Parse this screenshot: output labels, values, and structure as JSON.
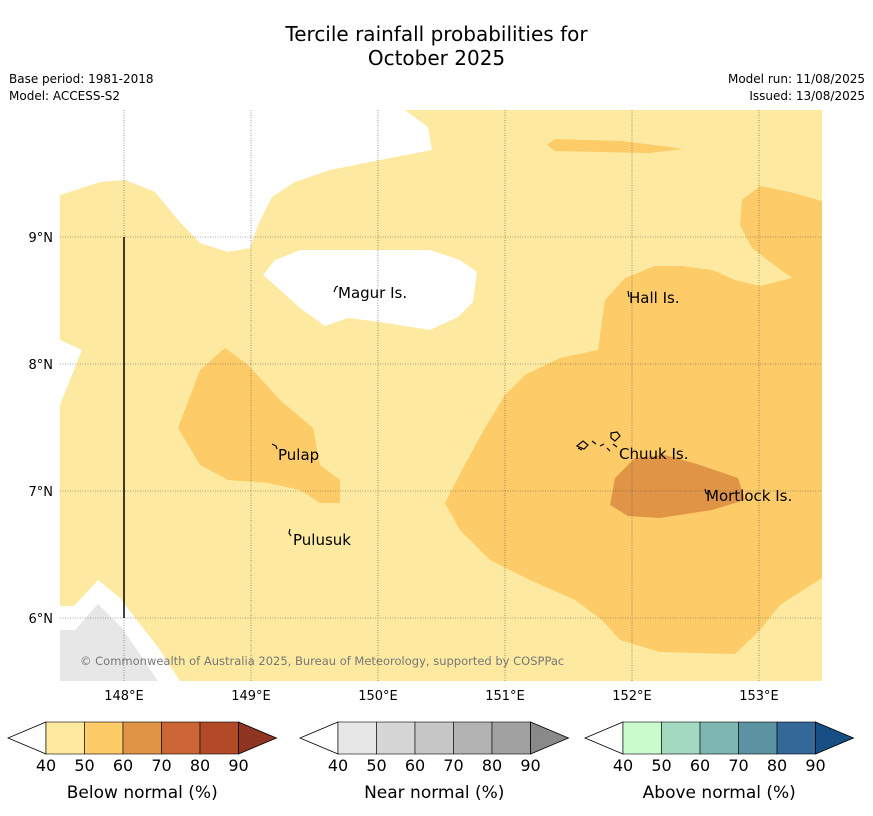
{
  "header": {
    "title_line1": "Tercile rainfall probabilities for",
    "title_line2": "October 2025",
    "base_period": "Base period: 1981-2018",
    "model": "Model: ACCESS-S2",
    "model_run": "Model run: 11/08/2025",
    "issued": "Issued: 13/08/2025"
  },
  "map": {
    "lon_ticks": [
      "148°E",
      "149°E",
      "150°E",
      "151°E",
      "152°E",
      "153°E"
    ],
    "lat_ticks": [
      "9°N",
      "8°N",
      "7°N",
      "6°N"
    ],
    "places": [
      {
        "name": "Magur Is."
      },
      {
        "name": "Hall Is."
      },
      {
        "name": "Pulap"
      },
      {
        "name": "Chuuk Is."
      },
      {
        "name": "Mortlock Is."
      },
      {
        "name": "Pulusuk"
      }
    ],
    "copyright": "© Commonwealth of Australia 2025, Bureau of Meteorology, supported by COSPPac"
  },
  "legend": {
    "bars": [
      {
        "label": "Below normal (%)",
        "ticks": [
          "40",
          "50",
          "60",
          "70",
          "80",
          "90"
        ],
        "colors": [
          "#ffffff",
          "#fdeaa0",
          "#fdcb67",
          "#e09546",
          "#cc6535",
          "#b24a28",
          "#8f3421"
        ]
      },
      {
        "label": "Near normal (%)",
        "ticks": [
          "40",
          "50",
          "60",
          "70",
          "80",
          "90"
        ],
        "colors": [
          "#ffffff",
          "#e7e7e7",
          "#d6d6d6",
          "#c6c6c6",
          "#b3b3b3",
          "#a1a1a1",
          "#898989"
        ]
      },
      {
        "label": "Above normal (%)",
        "ticks": [
          "40",
          "50",
          "60",
          "70",
          "80",
          "90"
        ],
        "colors": [
          "#ffffff",
          "#c9fbcd",
          "#a3d9c0",
          "#7eb6b1",
          "#5b93a3",
          "#336899",
          "#174f85"
        ]
      }
    ]
  },
  "colors": {
    "below_40_50": "#fdeaa0",
    "below_50_60": "#fdcb67",
    "below_60_70": "#e09546",
    "near_40_50": "#e7e7e7"
  }
}
